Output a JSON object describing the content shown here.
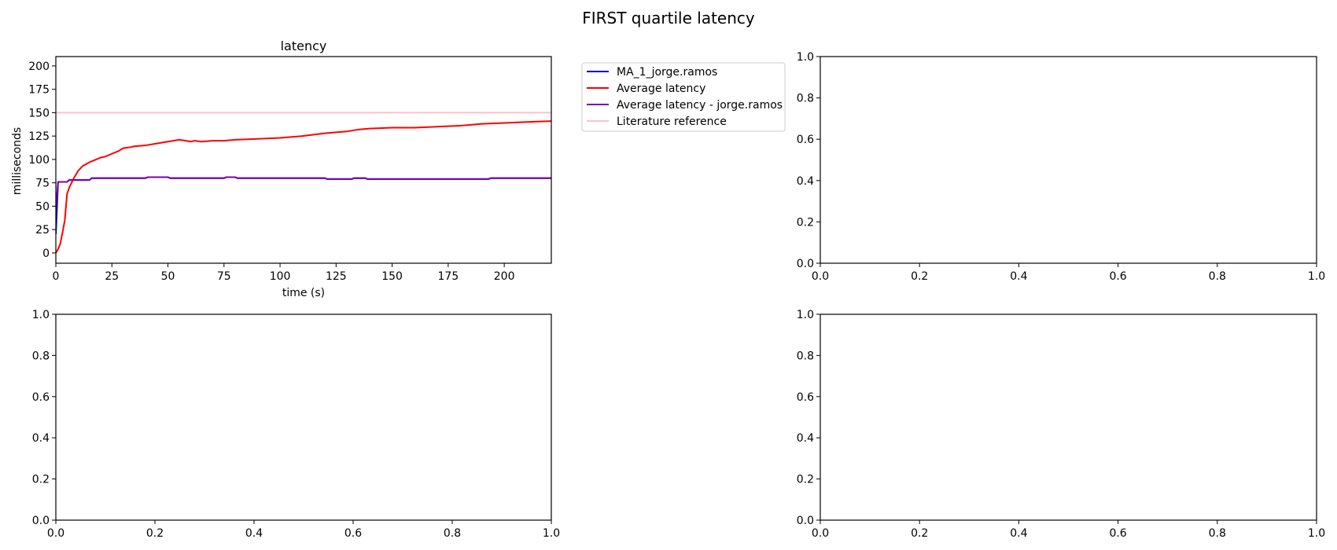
{
  "figure": {
    "title": "FIRST quartile latency"
  },
  "chart_data": [
    {
      "type": "line",
      "title": "latency",
      "xlabel": "time (s)",
      "ylabel": "milliseconds",
      "xlim": [
        0,
        221
      ],
      "ylim": [
        -11,
        210
      ],
      "xticks": [
        0,
        25,
        50,
        75,
        100,
        125,
        150,
        175,
        200
      ],
      "yticks": [
        0,
        25,
        50,
        75,
        100,
        125,
        150,
        175,
        200
      ],
      "grid": false,
      "legend_position": "outside-right",
      "series": [
        {
          "name": "MA_1_jorge.ramos",
          "color": "#0000cc",
          "x": [
            0,
            1,
            2,
            5,
            6,
            8,
            10,
            15,
            16,
            25,
            40,
            41,
            50,
            51,
            75,
            76,
            80,
            81,
            100,
            120,
            121,
            132,
            133,
            138,
            139,
            150,
            175,
            193,
            194,
            210,
            221
          ],
          "y": [
            20,
            76,
            76,
            76,
            78,
            78,
            78,
            78,
            80,
            80,
            80,
            81,
            81,
            80,
            80,
            81,
            81,
            80,
            80,
            80,
            79,
            79,
            80,
            80,
            79,
            79,
            79,
            79,
            80,
            80,
            80
          ]
        },
        {
          "name": "Average latency",
          "color": "#ff0000",
          "x": [
            0,
            1,
            2,
            3,
            4,
            5,
            6,
            8,
            10,
            12,
            15,
            18,
            20,
            22,
            25,
            28,
            30,
            33,
            35,
            40,
            45,
            50,
            55,
            58,
            60,
            62,
            65,
            70,
            75,
            80,
            90,
            100,
            110,
            120,
            125,
            130,
            135,
            140,
            150,
            160,
            170,
            180,
            185,
            190,
            200,
            210,
            221
          ],
          "y": [
            0,
            4,
            10,
            22,
            35,
            63,
            70,
            80,
            88,
            93,
            97,
            100,
            102,
            103,
            106,
            109,
            112,
            113,
            114,
            115,
            117,
            119,
            121,
            120,
            119,
            120,
            119,
            120,
            120,
            121,
            122,
            123,
            125,
            128,
            129,
            130,
            132,
            133,
            134,
            134,
            135,
            136,
            137,
            138,
            139,
            140,
            141
          ]
        },
        {
          "name": "Average latency - jorge.ramos",
          "color": "#7b00a8",
          "x": [
            0,
            1,
            2,
            5,
            6,
            8,
            10,
            15,
            16,
            25,
            40,
            41,
            50,
            51,
            75,
            76,
            80,
            81,
            100,
            120,
            121,
            132,
            133,
            138,
            139,
            150,
            175,
            193,
            194,
            210,
            221
          ],
          "y": [
            48,
            76,
            76,
            76,
            78,
            78,
            78,
            78,
            80,
            80,
            80,
            81,
            81,
            80,
            80,
            81,
            81,
            80,
            80,
            80,
            79,
            79,
            80,
            80,
            79,
            79,
            79,
            79,
            80,
            80,
            80
          ]
        },
        {
          "name": "Literature reference",
          "color": "#ffc0cb",
          "x": [
            0,
            221
          ],
          "y": [
            150,
            150
          ]
        }
      ]
    },
    {
      "type": "line",
      "title": "",
      "xlim": [
        0,
        1
      ],
      "ylim": [
        0,
        1
      ],
      "xticks": [
        "0.0",
        "0.2",
        "0.4",
        "0.6",
        "0.8",
        "1.0"
      ],
      "yticks": [
        "0.0",
        "0.2",
        "0.4",
        "0.6",
        "0.8",
        "1.0"
      ],
      "series": []
    },
    {
      "type": "line",
      "title": "",
      "xlim": [
        0,
        1
      ],
      "ylim": [
        0,
        1
      ],
      "xticks": [
        "0.0",
        "0.2",
        "0.4",
        "0.6",
        "0.8",
        "1.0"
      ],
      "yticks": [
        "0.0",
        "0.2",
        "0.4",
        "0.6",
        "0.8",
        "1.0"
      ],
      "series": []
    },
    {
      "type": "line",
      "title": "",
      "xlim": [
        0,
        1
      ],
      "ylim": [
        0,
        1
      ],
      "xticks": [
        "0.0",
        "0.2",
        "0.4",
        "0.6",
        "0.8",
        "1.0"
      ],
      "yticks": [
        "0.0",
        "0.2",
        "0.4",
        "0.6",
        "0.8",
        "1.0"
      ],
      "series": []
    }
  ]
}
